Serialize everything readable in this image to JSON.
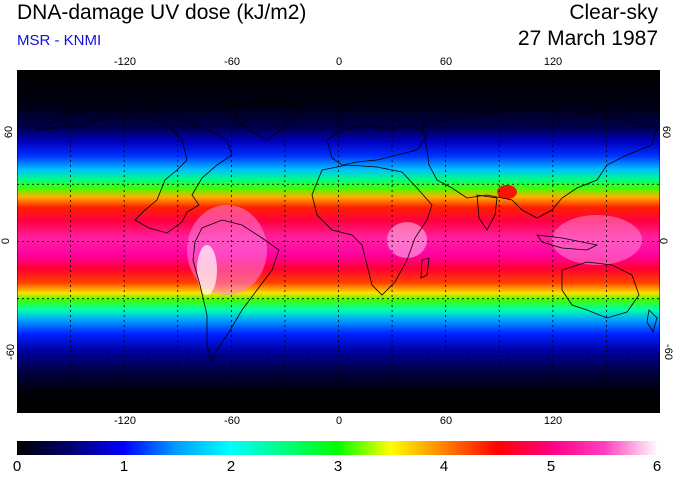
{
  "header": {
    "title": "DNA-damage UV dose (kJ/m2)",
    "subtitle": "MSR - KNMI",
    "condition": "Clear-sky",
    "date": "27 March 1987"
  },
  "map": {
    "lon_range": [
      -180,
      180
    ],
    "lat_range": [
      -90,
      90
    ],
    "lon_ticks": [
      "-120",
      "-60",
      "0",
      "60",
      "120"
    ],
    "lon_tick_values": [
      -120,
      -60,
      0,
      60,
      120
    ],
    "lat_ticks_left": [
      "60",
      "0",
      "-60"
    ],
    "lat_ticks_right": [
      "60",
      "0",
      "-60"
    ],
    "lat_tick_values": [
      60,
      0,
      -60
    ],
    "grid_lon_step": 30,
    "grid_lat_step": 30,
    "grid": "on",
    "colors": {
      "gridline": "#000000",
      "coastline": "#000000"
    }
  },
  "colorbar": {
    "labels": [
      "0",
      "1",
      "2",
      "3",
      "4",
      "5",
      "6"
    ],
    "min": 0,
    "max": 6,
    "stops": [
      "#000000",
      "#000070",
      "#0000ff",
      "#00a0ff",
      "#00ffff",
      "#00ff80",
      "#00ff00",
      "#ffff00",
      "#ff8000",
      "#ff0000",
      "#ff0080",
      "#ff40c0",
      "#ffffff"
    ]
  }
}
